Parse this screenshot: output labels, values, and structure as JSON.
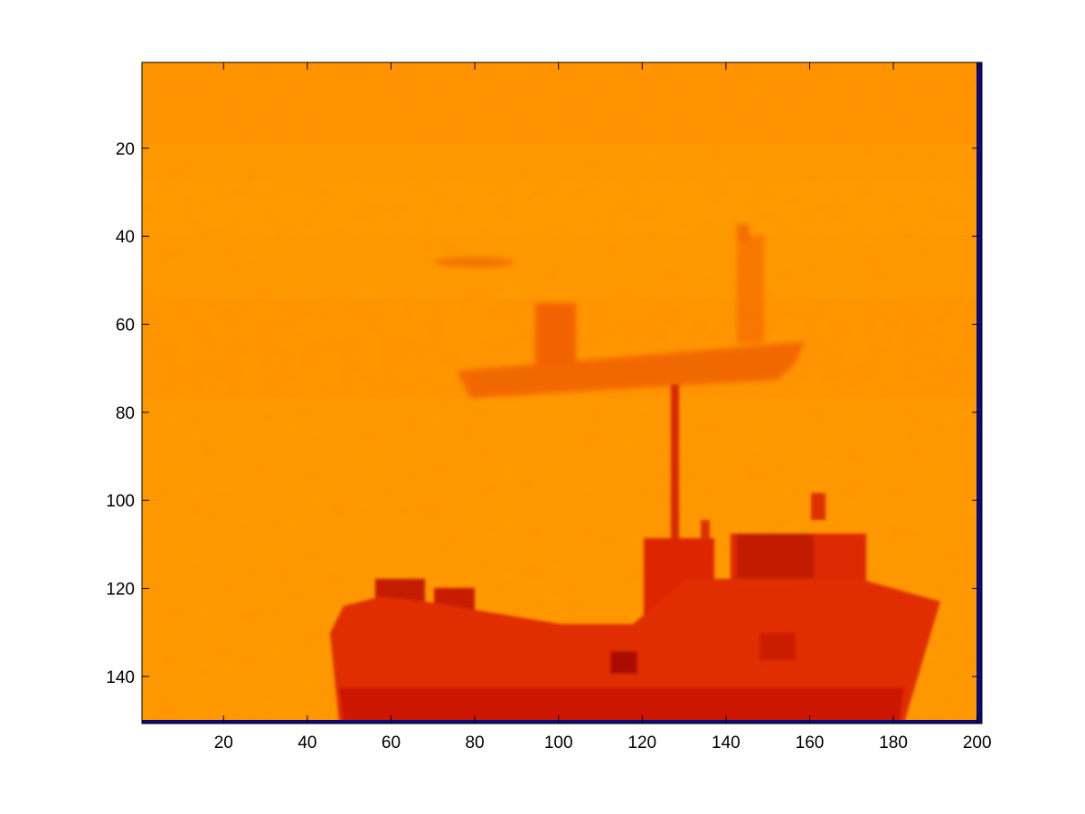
{
  "image": {
    "colormap": "hot",
    "colorbar_edge_color": "#0a0a7a",
    "x_ticks": [
      "20",
      "40",
      "60",
      "80",
      "100",
      "120",
      "140",
      "160",
      "180",
      "200"
    ],
    "y_ticks": [
      "20",
      "40",
      "60",
      "80",
      "100",
      "120",
      "140"
    ],
    "xlim": [
      1,
      200
    ],
    "ylim": [
      1,
      150
    ],
    "y_axis_direction": "reversed",
    "background_color": "#ff9900",
    "dark_shape_color": "#dd2200"
  }
}
